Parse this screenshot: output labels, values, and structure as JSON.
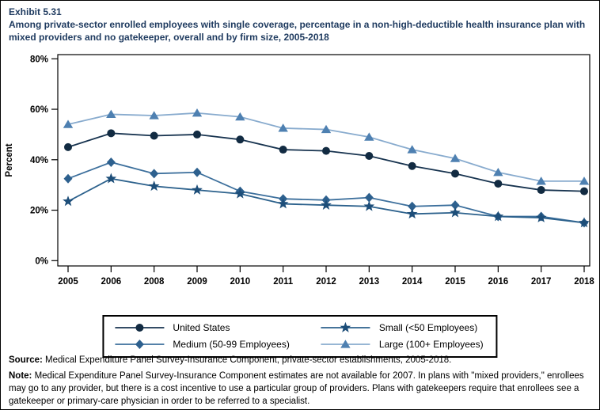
{
  "page": {
    "exhibit_label": "Exhibit 5.31",
    "title": "Among private-sector enrolled employees with single coverage, percentage in a non-high-deductible health insurance plan with mixed providers and no gatekeeper, overall and by firm size, 2005-2018"
  },
  "chart_data": {
    "type": "line",
    "title": "Percentage in a non-high-deductible health insurance plan with mixed providers and no gatekeeper, overall and by firm size, 2005-2018",
    "xlabel": "",
    "ylabel": "Percent",
    "ylim": [
      0,
      80
    ],
    "yticks": [
      0,
      20,
      40,
      60,
      80
    ],
    "ytick_suffix": "%",
    "grid": false,
    "legend_position": "bottom",
    "note": "No data for 2007 (estimates not available)",
    "categories": [
      "2005",
      "2006",
      "2008",
      "2009",
      "2010",
      "2011",
      "2012",
      "2013",
      "2014",
      "2015",
      "2016",
      "2017",
      "2018"
    ],
    "series": [
      {
        "name": "United States",
        "marker": "circle",
        "line_color": "#17334f",
        "marker_color": "#122b42",
        "values": [
          45,
          50.5,
          49.5,
          50,
          48,
          44,
          43.5,
          41.5,
          37.5,
          34.5,
          30.5,
          28,
          27.5
        ]
      },
      {
        "name": "Small (<50 Employees)",
        "marker": "star",
        "line_color": "#2c618c",
        "marker_color": "#1d4e79",
        "values": [
          23.5,
          32.5,
          29.5,
          28,
          26.5,
          22.5,
          22,
          21.5,
          18.5,
          19,
          17.5,
          17,
          15
        ]
      },
      {
        "name": "Medium (50-99 Employees)",
        "marker": "diamond",
        "line_color": "#3c6f9c",
        "marker_color": "#2d608e",
        "values": [
          32.5,
          39,
          34.5,
          35,
          27.5,
          24.5,
          24,
          25,
          21.5,
          22,
          17.5,
          17.5,
          15
        ]
      },
      {
        "name": "Large (100+ Employees)",
        "marker": "triangle",
        "line_color": "#88abce",
        "marker_color": "#4e80b1",
        "values": [
          54,
          58,
          57.5,
          58.5,
          57,
          52.5,
          52,
          49,
          44,
          40.5,
          35,
          31.5,
          31.5
        ]
      }
    ]
  },
  "footer": {
    "source_label": "Source:",
    "source_text": " Medical Expenditure Panel Survey-Insurance Component, private-sector establishments, 2005-2018.",
    "note_label": "Note:",
    "note_text": " Medical Expenditure Panel Survey-Insurance Component estimates are not available for 2007. In plans with \"mixed providers,\" enrollees may go to any provider, but there is a cost incentive to use a particular group of providers. Plans with gatekeepers require that enrollees see a gatekeeper or primary-care physician in order to be referred to a specialist."
  },
  "colors": {
    "title": "#1e3a5f",
    "axis": "#000000",
    "background": "#ffffff"
  }
}
